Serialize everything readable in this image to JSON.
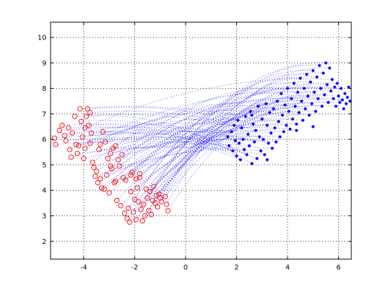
{
  "chart_data": {
    "type": "scatter",
    "title": "",
    "xlabel": "",
    "ylabel": "",
    "xlim": [
      -5.3,
      6.5
    ],
    "ylim": [
      1.3,
      10.6
    ],
    "grid": true,
    "grid_style": "dotted",
    "legend": "none",
    "x_ticks": [
      -4,
      -2,
      0,
      2,
      4,
      6
    ],
    "y_ticks": [
      2,
      3,
      4,
      5,
      6,
      7,
      8,
      9,
      10
    ],
    "series": [
      {
        "marker": "circle",
        "color": "#ff0000",
        "points": [
          [
            -5.15,
            6.05
          ],
          [
            -5.1,
            5.8
          ],
          [
            -4.95,
            6.35
          ],
          [
            -4.85,
            6.55
          ],
          [
            -4.75,
            6.15
          ],
          [
            -4.7,
            5.95
          ],
          [
            -4.6,
            6.45
          ],
          [
            -4.55,
            5.6
          ],
          [
            -4.5,
            5.3
          ],
          [
            -4.45,
            6.25
          ],
          [
            -4.35,
            6.9
          ],
          [
            -4.3,
            5.8
          ],
          [
            -4.25,
            5.45
          ],
          [
            -4.15,
            7.2
          ],
          [
            -4.1,
            6.7
          ],
          [
            -4.05,
            6.1
          ],
          [
            -4.0,
            5.25
          ],
          [
            -3.95,
            5.65
          ],
          [
            -3.9,
            6.9
          ],
          [
            -3.85,
            7.2
          ],
          [
            -3.8,
            6.55
          ],
          [
            -3.75,
            7.05
          ],
          [
            -3.7,
            6.25
          ],
          [
            -3.65,
            5.1
          ],
          [
            -3.6,
            4.9
          ],
          [
            -3.55,
            4.55
          ],
          [
            -3.5,
            4.75
          ],
          [
            -3.45,
            4.3
          ],
          [
            -3.4,
            5.6
          ],
          [
            -3.35,
            5.8
          ],
          [
            -3.3,
            4.1
          ],
          [
            -3.25,
            6.3
          ],
          [
            -3.2,
            4.05
          ],
          [
            -3.15,
            5.9
          ],
          [
            -3.1,
            4.6
          ],
          [
            -3.05,
            5.25
          ],
          [
            -3.0,
            3.9
          ],
          [
            -2.95,
            5.45
          ],
          [
            -2.9,
            4.85
          ],
          [
            -2.85,
            5.65
          ],
          [
            -2.8,
            4.3
          ],
          [
            -2.75,
            5.75
          ],
          [
            -2.7,
            3.6
          ],
          [
            -2.65,
            5.2
          ],
          [
            -2.6,
            4.95
          ],
          [
            -2.55,
            3.4
          ],
          [
            -2.5,
            5.4
          ],
          [
            -2.45,
            4.5
          ],
          [
            -2.4,
            3.1
          ],
          [
            -2.35,
            4.4
          ],
          [
            -2.3,
            2.9
          ],
          [
            -2.25,
            3.3
          ],
          [
            -2.2,
            2.75
          ],
          [
            -2.15,
            3.95
          ],
          [
            -2.1,
            4.7
          ],
          [
            -2.05,
            3.15
          ],
          [
            -2.0,
            3.65
          ],
          [
            -1.95,
            2.85
          ],
          [
            -1.9,
            4.1
          ],
          [
            -1.85,
            3.55
          ],
          [
            -1.8,
            4.5
          ],
          [
            -1.75,
            3.25
          ],
          [
            -1.7,
            2.8
          ],
          [
            -1.65,
            3.45
          ],
          [
            -1.6,
            3.0
          ],
          [
            -1.55,
            4.05
          ],
          [
            -1.5,
            3.7
          ],
          [
            -1.45,
            3.2
          ],
          [
            -1.4,
            3.95
          ],
          [
            -1.35,
            3.05
          ],
          [
            -1.3,
            3.6
          ],
          [
            -1.25,
            4.15
          ],
          [
            -1.2,
            3.5
          ],
          [
            -1.15,
            3.8
          ],
          [
            -1.1,
            3.35
          ],
          [
            -1.05,
            3.85
          ],
          [
            -1.0,
            3.7
          ],
          [
            -0.95,
            3.55
          ],
          [
            -0.8,
            3.75
          ],
          [
            -0.75,
            3.45
          ],
          [
            -0.7,
            3.2
          ],
          [
            -3.95,
            6.45
          ],
          [
            -3.75,
            5.85
          ],
          [
            -2.95,
            4.95
          ],
          [
            -2.75,
            4.35
          ],
          [
            -2.15,
            4.6
          ],
          [
            -1.95,
            4.45
          ],
          [
            -1.8,
            4.65
          ],
          [
            -4.2,
            5.75
          ],
          [
            -3.35,
            4.45
          ]
        ]
      },
      {
        "marker": "asterisk",
        "color": "#0000ff",
        "points": [
          [
            1.65,
            6.1
          ],
          [
            1.7,
            5.75
          ],
          [
            1.8,
            6.3
          ],
          [
            1.85,
            5.55
          ],
          [
            1.9,
            6.55
          ],
          [
            1.95,
            5.95
          ],
          [
            2.0,
            5.35
          ],
          [
            2.05,
            6.75
          ],
          [
            2.1,
            5.85
          ],
          [
            2.15,
            5.2
          ],
          [
            2.2,
            6.45
          ],
          [
            2.25,
            6.0
          ],
          [
            2.3,
            5.6
          ],
          [
            2.35,
            6.9
          ],
          [
            2.4,
            5.4
          ],
          [
            2.45,
            6.2
          ],
          [
            2.5,
            5.75
          ],
          [
            2.55,
            7.1
          ],
          [
            2.6,
            5.05
          ],
          [
            2.65,
            6.6
          ],
          [
            2.7,
            5.9
          ],
          [
            2.75,
            6.35
          ],
          [
            2.8,
            5.25
          ],
          [
            2.85,
            7.3
          ],
          [
            2.9,
            6.1
          ],
          [
            2.95,
            5.55
          ],
          [
            3.0,
            6.8
          ],
          [
            3.05,
            6.0
          ],
          [
            3.1,
            5.4
          ],
          [
            3.15,
            7.4
          ],
          [
            3.2,
            6.55
          ],
          [
            3.25,
            5.85
          ],
          [
            3.3,
            7.05
          ],
          [
            3.35,
            6.25
          ],
          [
            3.4,
            5.65
          ],
          [
            3.45,
            7.2
          ],
          [
            3.5,
            6.45
          ],
          [
            3.55,
            5.9
          ],
          [
            3.6,
            7.5
          ],
          [
            3.65,
            6.7
          ],
          [
            3.7,
            6.1
          ],
          [
            3.75,
            7.8
          ],
          [
            3.8,
            6.95
          ],
          [
            3.85,
            6.3
          ],
          [
            3.9,
            7.35
          ],
          [
            3.95,
            6.55
          ],
          [
            4.0,
            8.0
          ],
          [
            4.05,
            7.1
          ],
          [
            4.1,
            6.4
          ],
          [
            4.15,
            7.6
          ],
          [
            4.2,
            6.8
          ],
          [
            4.25,
            8.2
          ],
          [
            4.3,
            7.3
          ],
          [
            4.35,
            6.6
          ],
          [
            4.4,
            7.85
          ],
          [
            4.45,
            7.05
          ],
          [
            4.5,
            8.4
          ],
          [
            4.55,
            7.5
          ],
          [
            4.6,
            6.75
          ],
          [
            4.65,
            8.0
          ],
          [
            4.7,
            7.2
          ],
          [
            4.75,
            8.55
          ],
          [
            4.8,
            7.7
          ],
          [
            4.85,
            6.95
          ],
          [
            4.9,
            8.25
          ],
          [
            4.95,
            7.4
          ],
          [
            5.0,
            8.7
          ],
          [
            5.05,
            7.85
          ],
          [
            5.1,
            7.1
          ],
          [
            5.15,
            8.45
          ],
          [
            5.2,
            7.6
          ],
          [
            5.25,
            8.9
          ],
          [
            5.3,
            8.0
          ],
          [
            5.35,
            7.3
          ],
          [
            5.4,
            8.6
          ],
          [
            5.45,
            7.75
          ],
          [
            5.5,
            9.0
          ],
          [
            5.55,
            8.15
          ],
          [
            5.6,
            7.45
          ],
          [
            5.65,
            8.8
          ],
          [
            5.7,
            7.9
          ],
          [
            5.75,
            8.35
          ],
          [
            5.8,
            7.6
          ],
          [
            5.85,
            8.05
          ],
          [
            5.9,
            7.3
          ],
          [
            5.95,
            8.2
          ],
          [
            6.0,
            7.7
          ],
          [
            6.05,
            7.45
          ],
          [
            6.1,
            8.0
          ],
          [
            6.15,
            7.55
          ],
          [
            6.2,
            7.2
          ],
          [
            6.25,
            7.8
          ],
          [
            6.3,
            7.4
          ],
          [
            6.35,
            7.65
          ],
          [
            6.4,
            8.05
          ],
          [
            6.45,
            7.5
          ],
          [
            3.2,
            5.2
          ],
          [
            2.6,
            6.95
          ],
          [
            4.35,
            6.35
          ],
          [
            5.0,
            6.5
          ]
        ]
      }
    ],
    "connector_color": "#0000ff",
    "connector_style": "dotted"
  }
}
